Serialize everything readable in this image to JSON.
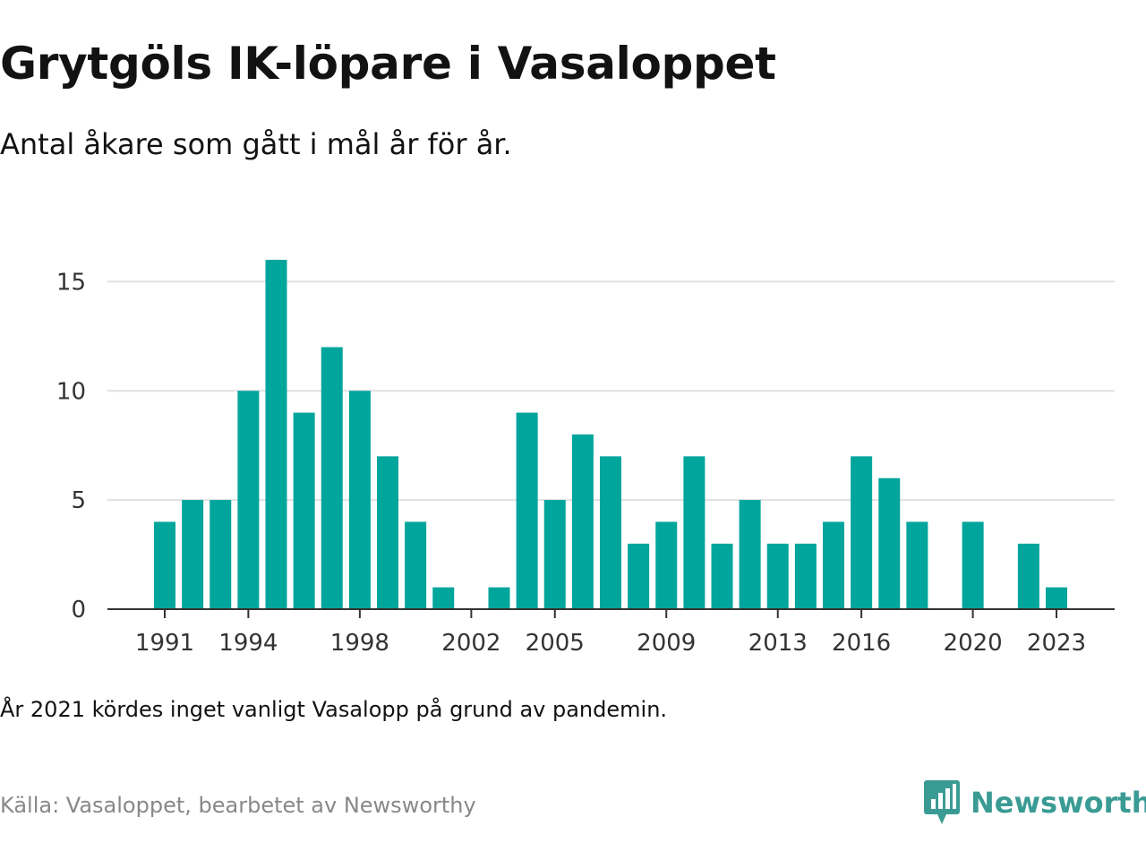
{
  "title": "Grytgöls IK-löpare i Vasaloppet",
  "subtitle": "Antal åkare som gått i mål år för år.",
  "note": "År 2021 kördes inget vanligt Vasalopp på grund av pandemin.",
  "source": "Källa: Vasaloppet, bearbetet av Newsworthy",
  "brand": {
    "name": "Newsworthy",
    "icon": "newsworthy-logo-icon",
    "color": "#3a9b94"
  },
  "colors": {
    "bar": "#00a59c",
    "grid": "#e0e0e0",
    "axis": "#333333",
    "tick_text": "#333333"
  },
  "chart_data": {
    "type": "bar",
    "title": "Grytgöls IK-löpare i Vasaloppet",
    "subtitle": "Antal åkare som gått i mål år för år.",
    "xlabel": "",
    "ylabel": "",
    "categories": [
      1991,
      1992,
      1993,
      1994,
      1995,
      1996,
      1997,
      1998,
      1999,
      2000,
      2001,
      2002,
      2003,
      2004,
      2005,
      2006,
      2007,
      2008,
      2009,
      2010,
      2011,
      2012,
      2013,
      2014,
      2015,
      2016,
      2017,
      2018,
      2019,
      2020,
      2021,
      2022,
      2023
    ],
    "values": [
      4,
      5,
      5,
      10,
      16,
      9,
      12,
      10,
      7,
      4,
      1,
      0,
      1,
      9,
      5,
      8,
      7,
      3,
      4,
      7,
      3,
      5,
      3,
      3,
      4,
      7,
      6,
      4,
      0,
      4,
      0,
      3,
      1
    ],
    "x_ticks": [
      1991,
      1994,
      1998,
      2002,
      2005,
      2009,
      2013,
      2016,
      2020,
      2023
    ],
    "y_ticks": [
      0,
      5,
      10,
      15
    ],
    "ylim": [
      0,
      16
    ],
    "xlim": [
      1991,
      2023
    ],
    "grid": "horizontal",
    "legend": "none"
  }
}
